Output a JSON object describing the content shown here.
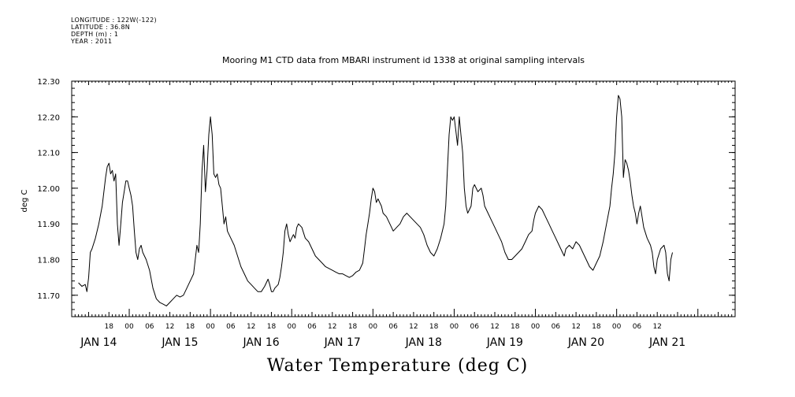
{
  "meta": {
    "lines": [
      "LONGITUDE : 122W(-122)",
      "LATITUDE : 36.8N",
      "DEPTH (m) : 1",
      "YEAR : 2011"
    ]
  },
  "chart_data": {
    "type": "line",
    "title": "Mooring M1 CTD data from MBARI instrument id 1338 at original sampling intervals",
    "xlabel": "Water Temperature (deg C)",
    "ylabel": "deg C",
    "ylim": [
      11.64,
      12.3
    ],
    "xlim_hours_from_jan14_00": [
      -17,
      179
    ],
    "y_ticks": [
      "11.70",
      "11.80",
      "11.90",
      "12.00",
      "12.10",
      "12.20",
      "12.30"
    ],
    "hour_labels": [
      "18",
      "00",
      "06",
      "12",
      "18",
      "00",
      "06",
      "12",
      "18",
      "00",
      "06",
      "12",
      "18",
      "00",
      "06",
      "12",
      "18",
      "00",
      "06",
      "12",
      "18",
      "00",
      "06",
      "12",
      "18",
      "00",
      "06",
      "12"
    ],
    "hour_label_positions_h": [
      -6,
      0,
      6,
      12,
      18,
      24,
      30,
      36,
      42,
      48,
      54,
      60,
      66,
      72,
      78,
      84,
      90,
      96,
      102,
      108,
      114,
      120,
      126,
      132,
      138,
      144,
      150,
      156
    ],
    "day_labels": [
      "JAN 14",
      "JAN 15",
      "JAN 16",
      "JAN 17",
      "JAN 18",
      "JAN 19",
      "JAN 20",
      "JAN 21"
    ],
    "day_label_hours": [
      -9,
      15,
      39,
      63,
      87,
      111,
      135,
      159
    ],
    "series": [
      {
        "values": [
          [
            -15,
            11.735
          ],
          [
            -14,
            11.725
          ],
          [
            -13,
            11.73
          ],
          [
            -12.5,
            11.71
          ],
          [
            -12,
            11.75
          ],
          [
            -11.5,
            11.82
          ],
          [
            -11,
            11.83
          ],
          [
            -10,
            11.86
          ],
          [
            -9,
            11.9
          ],
          [
            -8,
            11.95
          ],
          [
            -7,
            12.03
          ],
          [
            -6.5,
            12.06
          ],
          [
            -6,
            12.07
          ],
          [
            -5.5,
            12.04
          ],
          [
            -5,
            12.05
          ],
          [
            -4.5,
            12.02
          ],
          [
            -4,
            12.04
          ],
          [
            -3.5,
            11.9
          ],
          [
            -3,
            11.84
          ],
          [
            -2.5,
            11.9
          ],
          [
            -2,
            11.96
          ],
          [
            -1.5,
            11.99
          ],
          [
            -1,
            12.02
          ],
          [
            -0.5,
            12.02
          ],
          [
            0,
            12.0
          ],
          [
            0.5,
            11.98
          ],
          [
            1,
            11.95
          ],
          [
            1.5,
            11.88
          ],
          [
            2,
            11.82
          ],
          [
            2.5,
            11.8
          ],
          [
            3,
            11.83
          ],
          [
            3.5,
            11.84
          ],
          [
            4,
            11.82
          ],
          [
            5,
            11.8
          ],
          [
            6,
            11.77
          ],
          [
            7,
            11.72
          ],
          [
            8,
            11.69
          ],
          [
            9,
            11.68
          ],
          [
            10,
            11.675
          ],
          [
            11,
            11.67
          ],
          [
            12,
            11.68
          ],
          [
            13,
            11.69
          ],
          [
            14,
            11.7
          ],
          [
            15,
            11.695
          ],
          [
            16,
            11.7
          ],
          [
            17,
            11.72
          ],
          [
            18,
            11.74
          ],
          [
            19,
            11.76
          ],
          [
            19.5,
            11.8
          ],
          [
            20,
            11.84
          ],
          [
            20.5,
            11.82
          ],
          [
            21,
            11.9
          ],
          [
            21.5,
            12.05
          ],
          [
            22,
            12.12
          ],
          [
            22.5,
            11.99
          ],
          [
            23,
            12.05
          ],
          [
            23.5,
            12.15
          ],
          [
            24,
            12.2
          ],
          [
            24.5,
            12.15
          ],
          [
            25,
            12.04
          ],
          [
            25.5,
            12.03
          ],
          [
            26,
            12.04
          ],
          [
            26.5,
            12.01
          ],
          [
            27,
            12.0
          ],
          [
            27.5,
            11.95
          ],
          [
            28,
            11.9
          ],
          [
            28.5,
            11.92
          ],
          [
            29,
            11.88
          ],
          [
            30,
            11.86
          ],
          [
            31,
            11.84
          ],
          [
            32,
            11.81
          ],
          [
            33,
            11.78
          ],
          [
            34,
            11.76
          ],
          [
            35,
            11.74
          ],
          [
            36,
            11.73
          ],
          [
            37,
            11.72
          ],
          [
            38,
            11.71
          ],
          [
            39,
            11.71
          ],
          [
            40,
            11.725
          ],
          [
            41,
            11.745
          ],
          [
            41.5,
            11.73
          ],
          [
            42,
            11.71
          ],
          [
            42.5,
            11.71
          ],
          [
            43,
            11.72
          ],
          [
            44,
            11.73
          ],
          [
            44.5,
            11.75
          ],
          [
            45,
            11.78
          ],
          [
            45.5,
            11.82
          ],
          [
            46,
            11.88
          ],
          [
            46.5,
            11.9
          ],
          [
            47,
            11.87
          ],
          [
            47.5,
            11.85
          ],
          [
            48,
            11.86
          ],
          [
            48.5,
            11.87
          ],
          [
            49,
            11.86
          ],
          [
            49.5,
            11.89
          ],
          [
            50,
            11.9
          ],
          [
            51,
            11.89
          ],
          [
            52,
            11.86
          ],
          [
            53,
            11.85
          ],
          [
            54,
            11.83
          ],
          [
            55,
            11.81
          ],
          [
            56,
            11.8
          ],
          [
            57,
            11.79
          ],
          [
            58,
            11.78
          ],
          [
            59,
            11.775
          ],
          [
            60,
            11.77
          ],
          [
            61,
            11.765
          ],
          [
            62,
            11.76
          ],
          [
            63,
            11.76
          ],
          [
            64,
            11.755
          ],
          [
            65,
            11.75
          ],
          [
            66,
            11.755
          ],
          [
            67,
            11.765
          ],
          [
            68,
            11.77
          ],
          [
            69,
            11.79
          ],
          [
            69.5,
            11.83
          ],
          [
            70,
            11.87
          ],
          [
            70.5,
            11.9
          ],
          [
            71,
            11.93
          ],
          [
            71.5,
            11.97
          ],
          [
            72,
            12.0
          ],
          [
            72.5,
            11.99
          ],
          [
            73,
            11.96
          ],
          [
            73.5,
            11.97
          ],
          [
            74,
            11.96
          ],
          [
            74.5,
            11.95
          ],
          [
            75,
            11.93
          ],
          [
            76,
            11.92
          ],
          [
            77,
            11.9
          ],
          [
            78,
            11.88
          ],
          [
            79,
            11.89
          ],
          [
            80,
            11.9
          ],
          [
            81,
            11.92
          ],
          [
            82,
            11.93
          ],
          [
            83,
            11.92
          ],
          [
            84,
            11.91
          ],
          [
            85,
            11.9
          ],
          [
            86,
            11.89
          ],
          [
            87,
            11.87
          ],
          [
            88,
            11.84
          ],
          [
            89,
            11.82
          ],
          [
            90,
            11.81
          ],
          [
            91,
            11.83
          ],
          [
            92,
            11.86
          ],
          [
            93,
            11.9
          ],
          [
            93.5,
            11.95
          ],
          [
            94,
            12.05
          ],
          [
            94.5,
            12.15
          ],
          [
            95,
            12.2
          ],
          [
            95.5,
            12.19
          ],
          [
            96,
            12.2
          ],
          [
            96.5,
            12.16
          ],
          [
            97,
            12.12
          ],
          [
            97.5,
            12.2
          ],
          [
            98,
            12.15
          ],
          [
            98.5,
            12.1
          ],
          [
            99,
            12.0
          ],
          [
            99.5,
            11.95
          ],
          [
            100,
            11.93
          ],
          [
            101,
            11.95
          ],
          [
            101.5,
            12.0
          ],
          [
            102,
            12.01
          ],
          [
            103,
            11.99
          ],
          [
            104,
            12.0
          ],
          [
            104.5,
            11.98
          ],
          [
            105,
            11.95
          ],
          [
            106,
            11.93
          ],
          [
            107,
            11.91
          ],
          [
            108,
            11.89
          ],
          [
            109,
            11.87
          ],
          [
            110,
            11.85
          ],
          [
            111,
            11.82
          ],
          [
            112,
            11.8
          ],
          [
            113,
            11.8
          ],
          [
            114,
            11.81
          ],
          [
            115,
            11.82
          ],
          [
            116,
            11.83
          ],
          [
            117,
            11.85
          ],
          [
            118,
            11.87
          ],
          [
            119,
            11.88
          ],
          [
            119.5,
            11.91
          ],
          [
            120,
            11.93
          ],
          [
            121,
            11.95
          ],
          [
            122,
            11.94
          ],
          [
            123,
            11.92
          ],
          [
            124,
            11.9
          ],
          [
            125,
            11.88
          ],
          [
            126,
            11.86
          ],
          [
            127,
            11.84
          ],
          [
            128,
            11.82
          ],
          [
            128.5,
            11.81
          ],
          [
            129,
            11.83
          ],
          [
            130,
            11.84
          ],
          [
            131,
            11.83
          ],
          [
            132,
            11.85
          ],
          [
            133,
            11.84
          ],
          [
            134,
            11.82
          ],
          [
            135,
            11.8
          ],
          [
            136,
            11.78
          ],
          [
            137,
            11.77
          ],
          [
            138,
            11.79
          ],
          [
            139,
            11.81
          ],
          [
            140,
            11.85
          ],
          [
            141,
            11.9
          ],
          [
            142,
            11.95
          ],
          [
            142.5,
            12.0
          ],
          [
            143,
            12.04
          ],
          [
            143.5,
            12.1
          ],
          [
            144,
            12.2
          ],
          [
            144.5,
            12.26
          ],
          [
            145,
            12.25
          ],
          [
            145.5,
            12.2
          ],
          [
            146,
            12.03
          ],
          [
            146.5,
            12.08
          ],
          [
            147,
            12.07
          ],
          [
            147.5,
            12.05
          ],
          [
            148,
            12.02
          ],
          [
            148.5,
            11.98
          ],
          [
            149,
            11.95
          ],
          [
            149.5,
            11.93
          ],
          [
            150,
            11.9
          ],
          [
            150.5,
            11.93
          ],
          [
            151,
            11.95
          ],
          [
            151.5,
            11.92
          ],
          [
            152,
            11.89
          ],
          [
            153,
            11.86
          ],
          [
            154,
            11.84
          ],
          [
            154.5,
            11.82
          ],
          [
            155,
            11.78
          ],
          [
            155.5,
            11.76
          ],
          [
            156,
            11.8
          ],
          [
            157,
            11.83
          ],
          [
            158,
            11.84
          ],
          [
            158.5,
            11.82
          ],
          [
            159,
            11.76
          ],
          [
            159.5,
            11.74
          ],
          [
            160,
            11.8
          ],
          [
            160.5,
            11.82
          ]
        ]
      }
    ]
  },
  "colors": {
    "line": "#000000",
    "axes": "#000000",
    "background": "#ffffff"
  }
}
